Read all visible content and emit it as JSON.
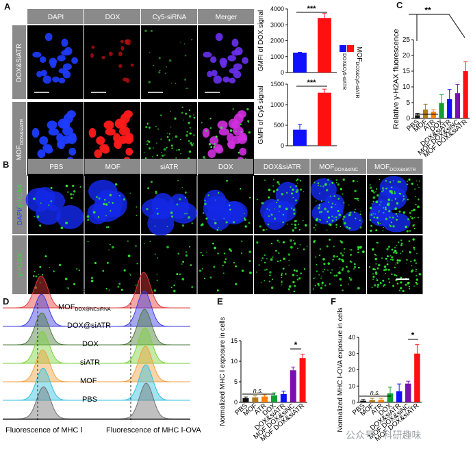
{
  "panels": {
    "a": "A",
    "b": "B",
    "c": "C",
    "d": "D",
    "e": "E",
    "f": "F"
  },
  "panel_a": {
    "columns": [
      "DAPI",
      "DOX",
      "Cy5-siRNA",
      "Merger"
    ],
    "rows": [
      {
        "label": "DOX&SiATR",
        "sub": ""
      },
      {
        "label": "MOF",
        "sub": "DOX&siATR"
      }
    ],
    "legend": {
      "main": "MOF",
      "sub1": "DOX&Cy5-siATR",
      "sub2": "DOX&Cy5-siATR"
    }
  },
  "panel_b": {
    "columns": [
      {
        "main": "PBS",
        "sub": ""
      },
      {
        "main": "MOF",
        "sub": ""
      },
      {
        "main": "siATR",
        "sub": ""
      },
      {
        "main": "DOX",
        "sub": ""
      },
      {
        "main": "DOX&siATR",
        "sub": ""
      },
      {
        "main": "MOF",
        "sub": "DOX&siNC"
      },
      {
        "main": "MOF",
        "sub": "DOX&siATR"
      }
    ],
    "rows": [
      {
        "label_a": "DAPI/",
        "label_b": "γ-H2AX"
      },
      {
        "label_a": "",
        "label_b": "γ-H2AX"
      }
    ]
  },
  "panel_d": {
    "xlabel_left": "Fluorescence of MHC Ⅰ",
    "xlabel_right": "Fluorescence of MHC Ⅰ-OVA",
    "tracks": [
      {
        "main": "MOF",
        "sub": "DOX@siATR",
        "color": "#e23a3a"
      },
      {
        "main": "MOF",
        "sub": "DOX@NCsiRNA",
        "color": "#3a3ae0"
      },
      {
        "main": "DOX@siATR",
        "sub": "",
        "color": "#4a7a3a"
      },
      {
        "main": "DOX",
        "sub": "",
        "color": "#7ad13a"
      },
      {
        "main": "siATR",
        "sub": "",
        "color": "#f0a040"
      },
      {
        "main": "MOF",
        "sub": "",
        "color": "#30c0e0"
      },
      {
        "main": "PBS",
        "sub": "",
        "color": "#707070"
      }
    ]
  },
  "sig": {
    "a1": "***",
    "a2": "***",
    "c": "**",
    "e_ns": "n.s.",
    "e": "*",
    "f_ns": "n.s.",
    "f": "*"
  },
  "watermark": "公众号 · 科研趣味",
  "colors": {
    "blue": "#1010ff",
    "red": "#ff1010"
  },
  "chart_data": [
    {
      "id": "a_dox",
      "type": "bar",
      "ylabel": "GMFI of DOX signal",
      "categories": [
        "DOX&SiATR",
        "MOF DOX&siATR"
      ],
      "values": [
        1250,
        3430
      ],
      "errors": [
        20,
        280
      ],
      "ylim": [
        0,
        4000
      ],
      "yticks": [
        0,
        1000,
        2000,
        3000,
        4000
      ],
      "colors": [
        "#1010ff",
        "#ff1010"
      ]
    },
    {
      "id": "a_cy5",
      "type": "bar",
      "ylabel": "GMFI of Cy5 signal",
      "categories": [
        "DOX&SiATR",
        "MOF DOX&siATR"
      ],
      "values": [
        390,
        1290
      ],
      "errors": [
        130,
        90
      ],
      "ylim": [
        0,
        1500
      ],
      "yticks": [
        0,
        500,
        1000,
        1500
      ],
      "colors": [
        "#1010ff",
        "#ff1010"
      ]
    },
    {
      "id": "c",
      "type": "bar",
      "ylabel": "Relative γ-H2AX fluorescence",
      "categories": [
        "PBS",
        "MOF",
        "ATR",
        "DOX",
        "DOX&siATR",
        "MOF DOX&siNC",
        "MOF DOX&siATR"
      ],
      "values": [
        1.0,
        2.8,
        2.1,
        4.9,
        6.1,
        8.0,
        15.0
      ],
      "errors": [
        0.6,
        1.7,
        0.6,
        2.6,
        3.1,
        2.8,
        3.0
      ],
      "ylim": [
        0,
        25
      ],
      "yticks": [
        0,
        5,
        10,
        15,
        20,
        25
      ],
      "colors": [
        "#111111",
        "#b07a1a",
        "#ff8000",
        "#10a030",
        "#1010ff",
        "#7a10b0",
        "#ff1010"
      ]
    },
    {
      "id": "e",
      "type": "bar",
      "ylabel": "Normalized MHC Ⅰ exposure in cells",
      "categories": [
        "PBS",
        "MOF",
        "ATR",
        "DOX",
        "DOX&siATR",
        "MOF DOX&siNC",
        "MOF DOX&siATR"
      ],
      "values": [
        1.0,
        1.2,
        1.4,
        1.7,
        2.0,
        7.8,
        10.8
      ],
      "errors": [
        0.3,
        0.4,
        0.4,
        0.6,
        0.7,
        0.8,
        0.9
      ],
      "ylim": [
        0,
        15
      ],
      "yticks": [
        0,
        5,
        10,
        15
      ],
      "colors": [
        "#111111",
        "#b07a1a",
        "#ff8000",
        "#10a030",
        "#1010ff",
        "#7a10b0",
        "#ff1010"
      ]
    },
    {
      "id": "f",
      "type": "bar",
      "ylabel": "Normalized MHC Ⅰ-OVA exposure in cells",
      "categories": [
        "PBS",
        "MOF",
        "ATR",
        "DOX",
        "DOX&siATR",
        "MOF DOX&siNC",
        "MOF DOX&siATR"
      ],
      "values": [
        1.0,
        1.3,
        1.5,
        5.5,
        6.8,
        11.5,
        30.0
      ],
      "errors": [
        0.8,
        1.2,
        1.0,
        3.8,
        4.5,
        1.5,
        5.5
      ],
      "ylim": [
        0,
        40
      ],
      "yticks": [
        0,
        10,
        20,
        30,
        40
      ],
      "colors": [
        "#111111",
        "#b07a1a",
        "#ff8000",
        "#10a030",
        "#1010ff",
        "#7a10b0",
        "#ff1010"
      ]
    }
  ]
}
